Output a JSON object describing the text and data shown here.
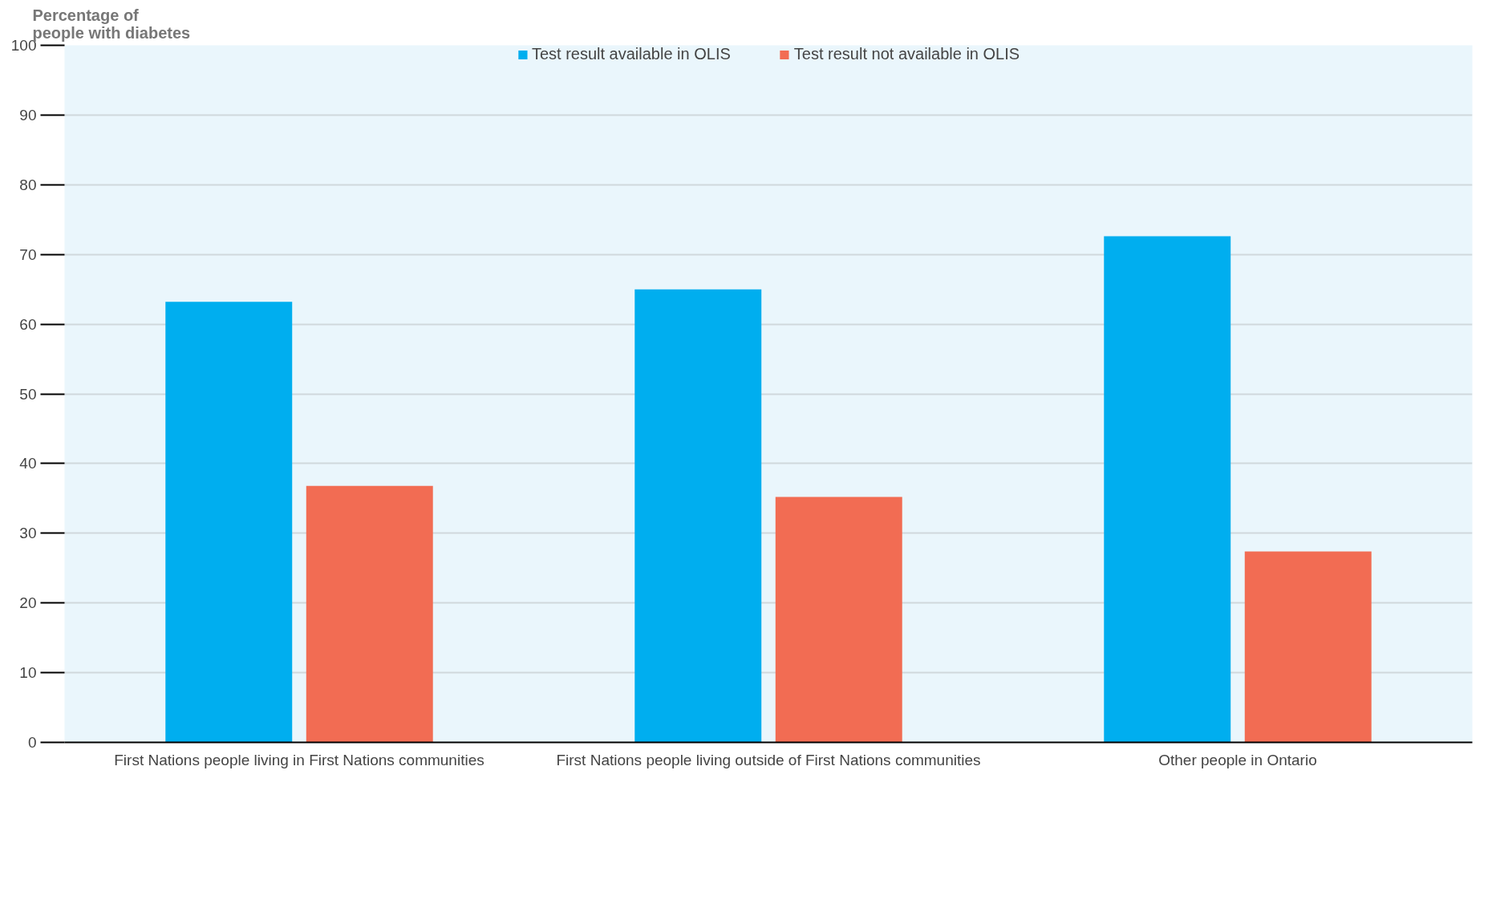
{
  "chart_data": {
    "type": "bar",
    "ylabel": "Percentage of\npeople with diabetes",
    "categories": [
      "First Nations people living in First Nations communities",
      "First Nations people living outside of First Nations communities",
      "Other people in Ontario"
    ],
    "series": [
      {
        "name": "Test result available in OLIS",
        "color": "#00aeef",
        "values": [
          63.2,
          65.0,
          72.6
        ]
      },
      {
        "name": "Test result not available in OLIS",
        "color": "#f26c53",
        "values": [
          36.8,
          35.2,
          27.4
        ]
      }
    ],
    "ylim": [
      0,
      100
    ],
    "yticks": [
      0,
      10,
      20,
      30,
      40,
      50,
      60,
      70,
      80,
      90,
      100
    ],
    "grid": "y",
    "legend": "top"
  }
}
